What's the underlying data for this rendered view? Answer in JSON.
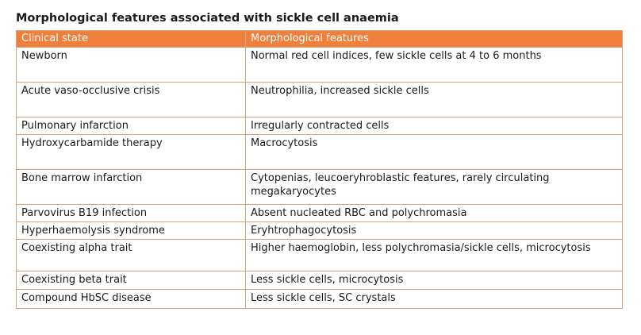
{
  "title": "Morphological  features associated with sickle cell anaemia",
  "colors": {
    "header_background": "#ef7f3a",
    "header_text": "#ffffff",
    "border": "#d2a47c"
  },
  "table": {
    "headers": [
      "Clinical state",
      "Morphological features"
    ],
    "rows": [
      [
        "Newborn",
        "Normal red cell indices, few sickle cells  at 4 to 6 months"
      ],
      [
        "Acute vaso-occlusive crisis",
        "Neutrophilia,  increased sickle cells"
      ],
      [
        "Pulmonary  infarction",
        "Irregularly  contracted cells"
      ],
      [
        "Hydroxycarbamide therapy",
        "Macrocytosis"
      ],
      [
        "Bone marrow infarction",
        "Cytopenias, leucoeryhroblastic features, rarely circulating megakaryocytes"
      ],
      [
        "Parvovirus  B19 infection",
        "Absent nucleated  RBC and polychromasia"
      ],
      [
        "Hyperhaemolysis  syndrome",
        "Eryhtrophagocytosis"
      ],
      [
        "Coexisting alpha trait",
        "Higher haemoglobin,  less polychromasia/sickle  cells, microcytosis"
      ],
      [
        "Coexisting beta trait",
        "Less sickle cells,  microcytosis"
      ],
      [
        "Compound HbSC disease",
        "Less sickle cells,  SC crystals"
      ]
    ]
  }
}
